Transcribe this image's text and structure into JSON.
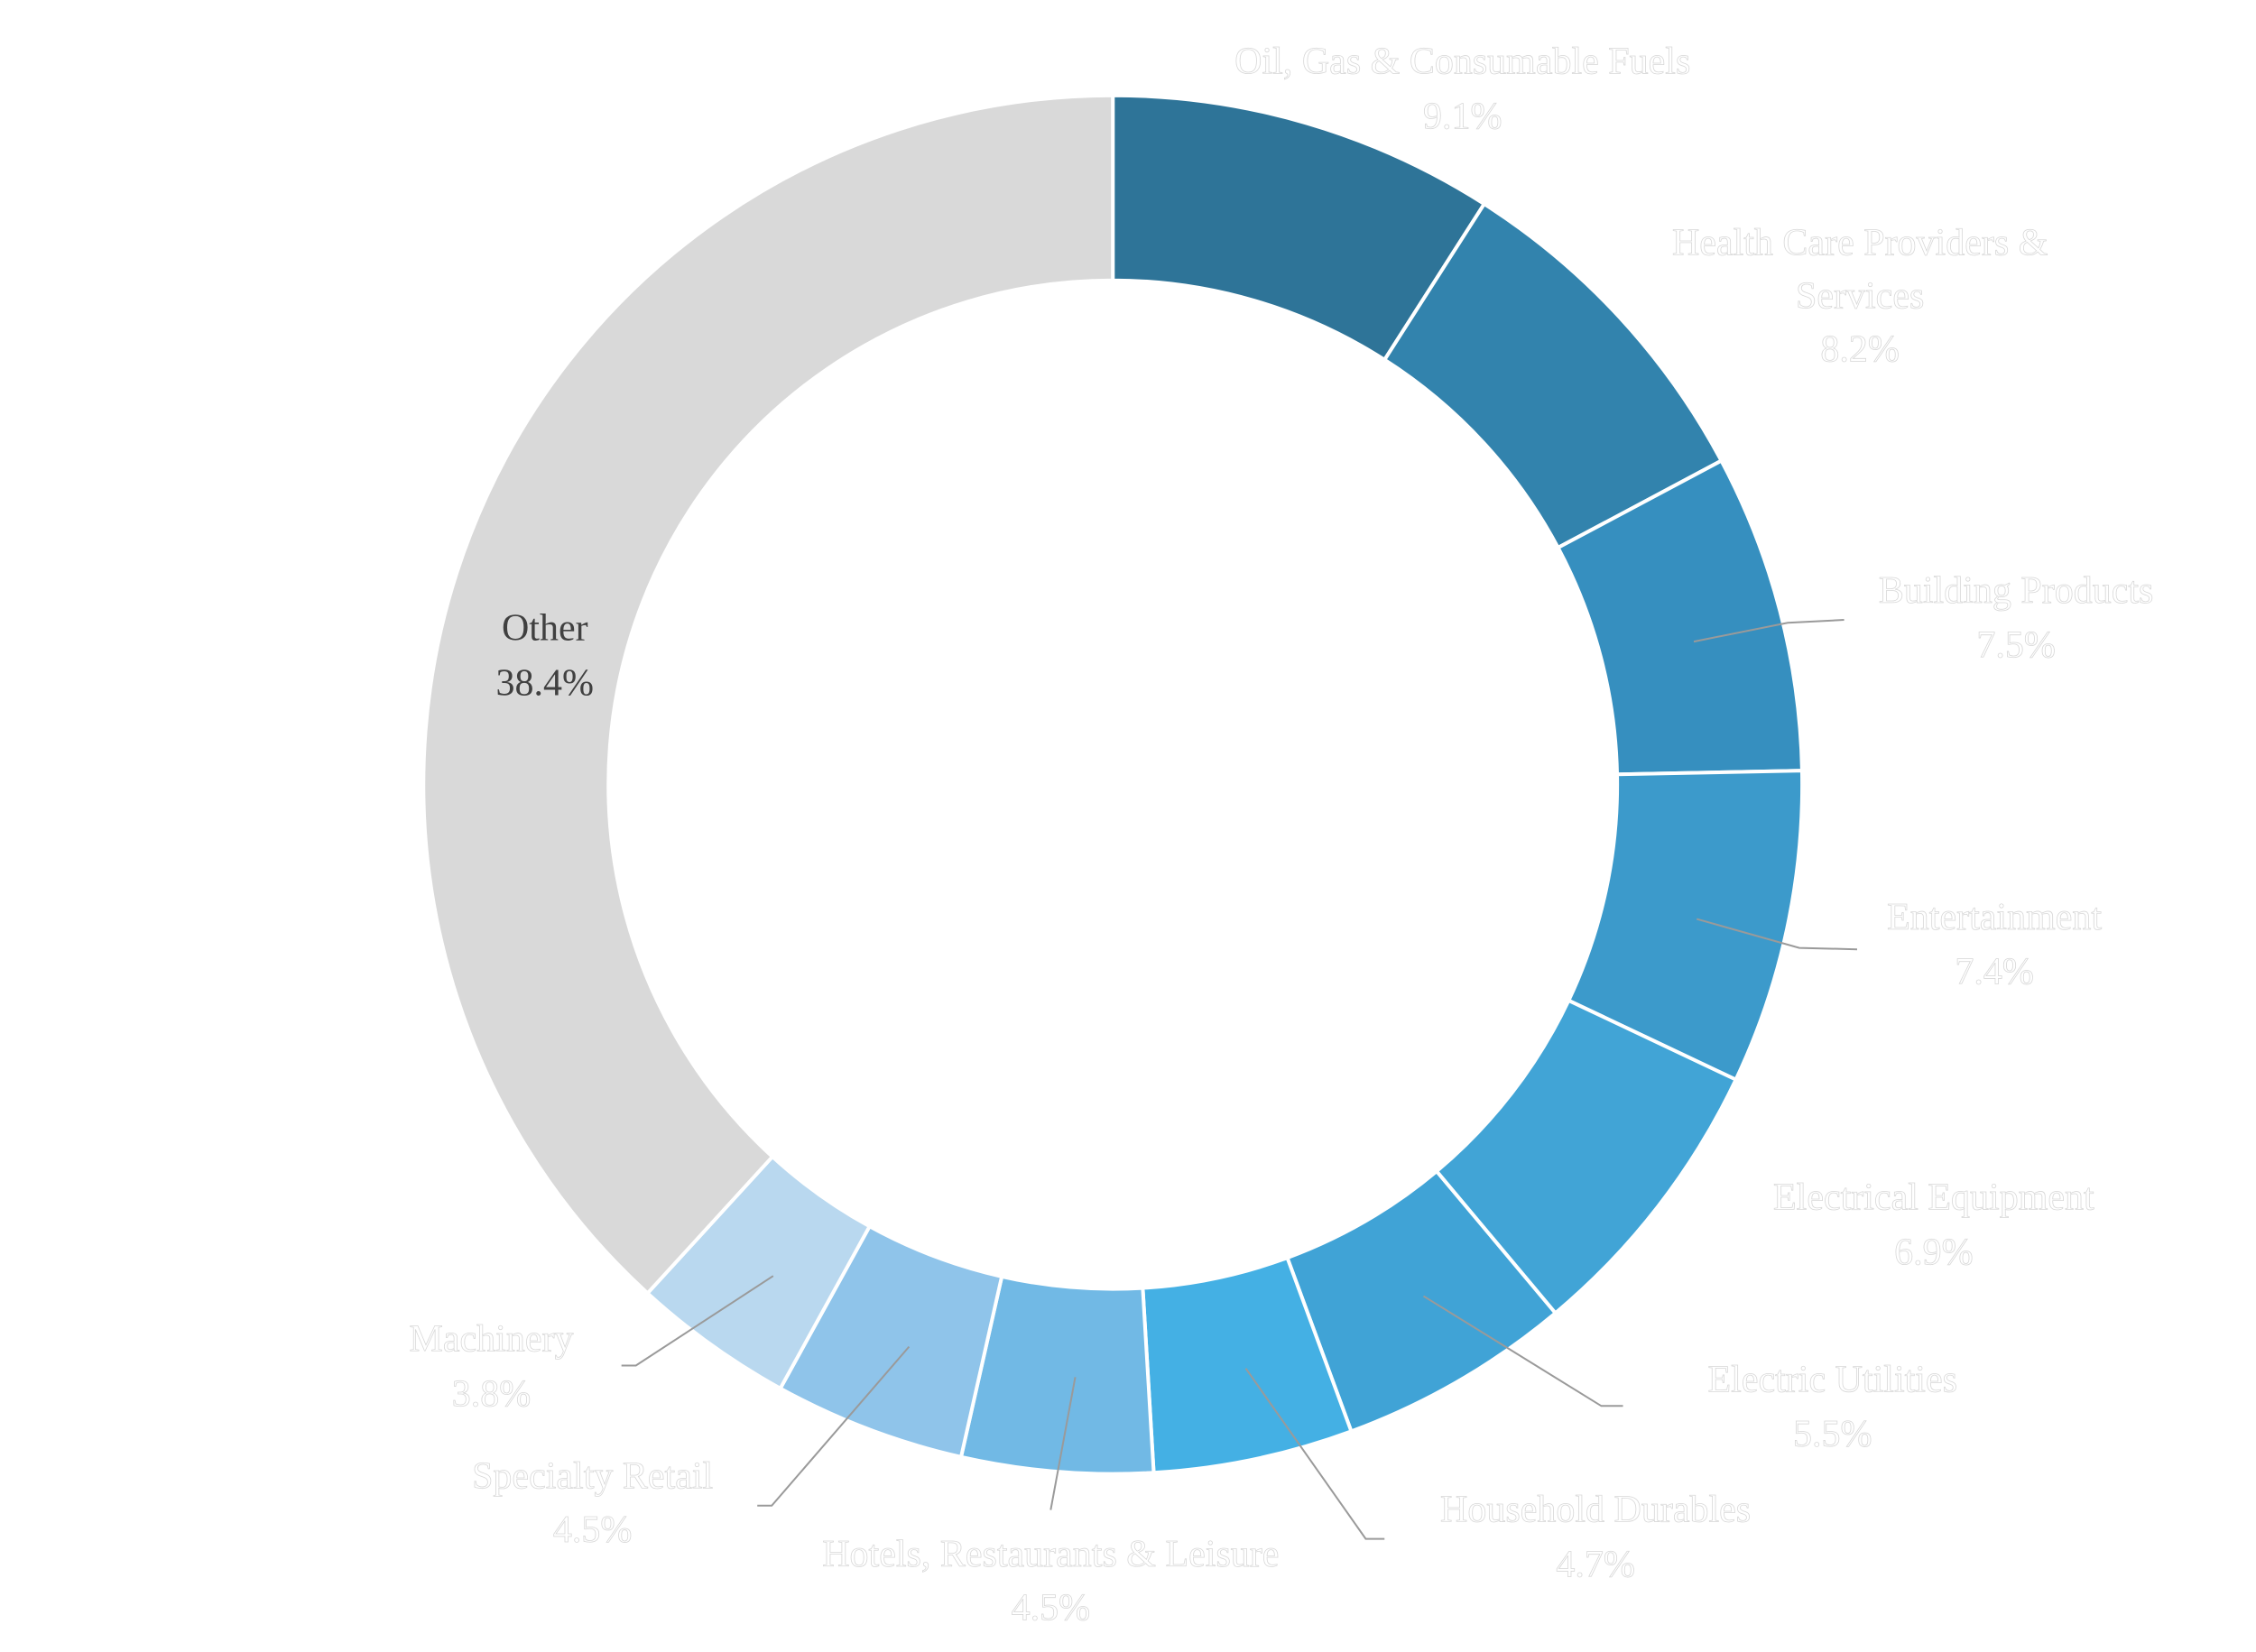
{
  "chart_data": {
    "type": "donut",
    "categories": [
      "Oil, Gas & Consumable Fuels",
      "Health Care Providers & Services",
      "Building Products",
      "Entertainment",
      "Electrical Equipment",
      "Electric Utilities",
      "Household Durables",
      "Hotels, Restaurants & Leisure",
      "Specialty Retail",
      "Machinery",
      "Other"
    ],
    "values": [
      9.1,
      8.2,
      7.5,
      7.4,
      6.9,
      5.5,
      4.7,
      4.5,
      4.5,
      3.8,
      38.4
    ],
    "value_labels": [
      "9.1%",
      "8.2%",
      "7.5%",
      "7.4%",
      "6.9%",
      "5.5%",
      "4.7%",
      "4.5%",
      "4.5%",
      "3.8%",
      "38.4%"
    ],
    "colors": [
      "#2e7498",
      "#3283ad",
      "#368fbf",
      "#3c9acb",
      "#41a4d6",
      "#40a3d6",
      "#44b0e4",
      "#71b9e5",
      "#8fc4ea",
      "#b9d8ef",
      "#d9d9d9"
    ]
  }
}
